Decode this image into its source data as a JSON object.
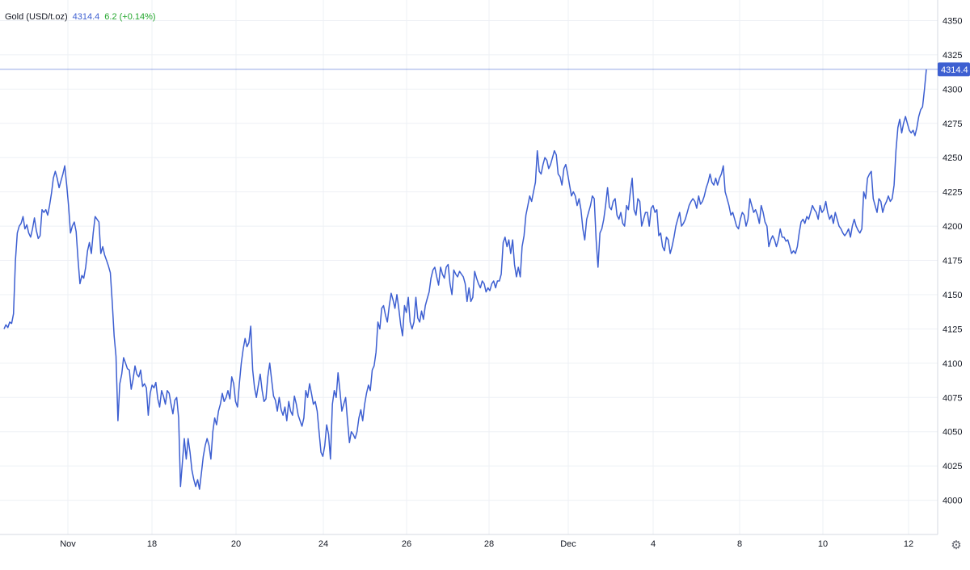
{
  "legend": {
    "symbol": "Gold (USD/t.oz)",
    "last": "4314.4",
    "change": "6.2 (+0.14%)"
  },
  "price_label": "4314.4",
  "colors": {
    "line": "#3d5fd1",
    "grid": "#eef0f5",
    "axis": "#d6d9e0",
    "change": "#22a62c",
    "price_tag": "#3d5fd1"
  },
  "settings_icon": "gear-icon",
  "chart_data": {
    "type": "line",
    "title": "",
    "series": [
      {
        "name": "Gold (USD/t.oz)",
        "x": [],
        "values": []
      }
    ],
    "last_value": 4314.4,
    "ylim": [
      3975,
      4365
    ],
    "y_ticks": [
      4000,
      4025,
      4050,
      4075,
      4100,
      4125,
      4150,
      4175,
      4200,
      4225,
      4250,
      4275,
      4300,
      4325,
      4350
    ],
    "x_ticks": [
      {
        "label": "Nov",
        "x": "2025-11-17"
      },
      {
        "label": "18",
        "x": "2025-11-18"
      },
      {
        "label": "20",
        "x": "2025-11-20"
      },
      {
        "label": "24",
        "x": "2025-11-24"
      },
      {
        "label": "26",
        "x": "2025-11-26"
      },
      {
        "label": "28",
        "x": "2025-11-28"
      },
      {
        "label": "Dec",
        "x": "2025-12-01"
      },
      {
        "label": "4",
        "x": "2025-12-04"
      },
      {
        "label": "8",
        "x": "2025-12-08"
      },
      {
        "label": "10",
        "x": "2025-12-10"
      },
      {
        "label": "12",
        "x": "2025-12-12"
      }
    ],
    "grid": true,
    "y_axis_side": "right"
  }
}
